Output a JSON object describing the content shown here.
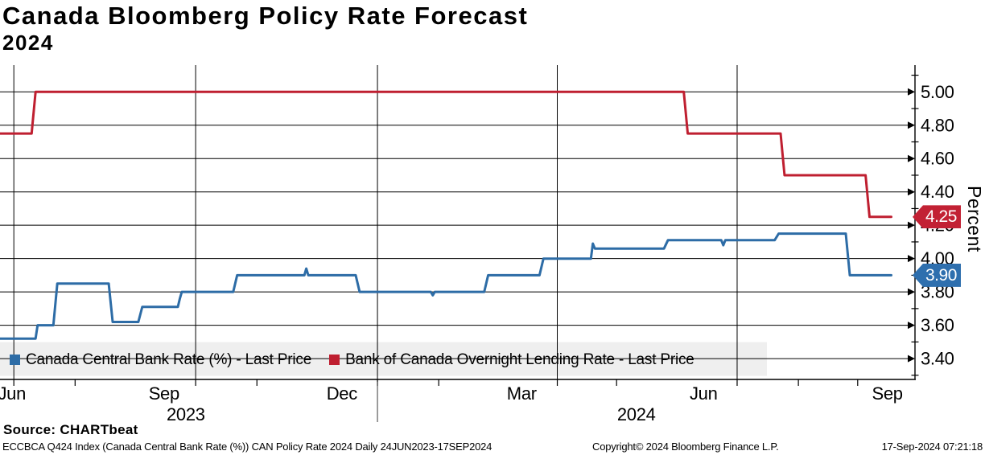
{
  "header": {
    "title": "Canada Bloomberg Policy Rate Forecast",
    "subtitle": "2024"
  },
  "legend": {
    "background": "#efefef",
    "items": [
      {
        "label": "Canada Central Bank Rate (%) - Last Price",
        "color": "#2d6ca6"
      },
      {
        "label": "Bank of Canada Overnight Lending Rate - Last Price",
        "color": "#bf1f30"
      }
    ]
  },
  "axis_y": {
    "title": "Percent",
    "badges": [
      {
        "value": "4.25",
        "color": "#c22134"
      },
      {
        "value": "3.90",
        "color": "#2e6fae"
      }
    ]
  },
  "footer": {
    "source": "Source: CHARTbeat",
    "left": "ECCBCA Q424 Index (Canada Central Bank Rate (%)) CAN Policy Rate 2024  Daily 24JUN2023-17SEP2024",
    "copyright": "Copyright© 2024 Bloomberg Finance L.P.",
    "timestamp": "17-Sep-2024 07:21:18"
  },
  "chart_data": {
    "type": "line",
    "title": "Canada Bloomberg Policy Rate Forecast 2024",
    "ylabel": "Percent",
    "grid": true,
    "legend_position": "bottom-inside",
    "x_range": {
      "start": "24JUN2023",
      "end": "17SEP2024",
      "days": [
        0,
        463
      ]
    },
    "ylim": [
      3.275,
      5.175
    ],
    "y_axis": {
      "majors": [
        {
          "value": 5.0,
          "label": "5.00"
        },
        {
          "value": 4.8,
          "label": "4.80"
        },
        {
          "value": 4.6,
          "label": "4.60"
        },
        {
          "value": 4.4,
          "label": "4.40"
        },
        {
          "value": 4.2,
          "label": "4.20"
        },
        {
          "value": 4.0,
          "label": "4.00"
        },
        {
          "value": 3.8,
          "label": "3.80"
        },
        {
          "value": 3.6,
          "label": "3.60"
        },
        {
          "value": 3.4,
          "label": "3.40"
        }
      ],
      "minors": [
        5.1,
        4.9,
        4.7,
        4.5,
        4.3,
        4.1,
        3.9,
        3.7,
        3.5,
        3.3
      ]
    },
    "x_axis": {
      "gridline_days": [
        7,
        99,
        191,
        282,
        373
      ],
      "tick_days": [
        7,
        38,
        99,
        130,
        191,
        222,
        282,
        312,
        373,
        404,
        434
      ],
      "labels": [
        {
          "day": 6,
          "text": "Jun"
        },
        {
          "day": 83,
          "text": "Sep"
        },
        {
          "day": 173,
          "text": "Dec"
        },
        {
          "day": 264,
          "text": "Mar"
        },
        {
          "day": 356,
          "text": "Jun"
        },
        {
          "day": 449,
          "text": "Sep"
        }
      ],
      "year_labels": [
        {
          "day": 94,
          "text": "2023"
        },
        {
          "day": 322,
          "text": "2024"
        }
      ],
      "year_separator_day": 191
    },
    "series": [
      {
        "id": "canada-central-bank-rate",
        "name": "Canada Central Bank Rate (%) - Last Price",
        "color": "#2d6ca6",
        "last_price": 3.9,
        "points": [
          [
            0,
            3.52
          ],
          [
            18,
            3.52
          ],
          [
            19,
            3.6
          ],
          [
            27,
            3.6
          ],
          [
            29,
            3.85
          ],
          [
            55,
            3.85
          ],
          [
            57,
            3.62
          ],
          [
            70,
            3.62
          ],
          [
            72,
            3.71
          ],
          [
            90,
            3.71
          ],
          [
            91,
            3.76
          ],
          [
            92,
            3.8
          ],
          [
            118,
            3.8
          ],
          [
            120,
            3.9
          ],
          [
            154,
            3.9
          ],
          [
            155,
            3.94
          ],
          [
            156,
            3.9
          ],
          [
            180,
            3.9
          ],
          [
            182,
            3.8
          ],
          [
            218,
            3.8
          ],
          [
            219,
            3.78
          ],
          [
            220,
            3.8
          ],
          [
            245,
            3.8
          ],
          [
            247,
            3.9
          ],
          [
            273,
            3.9
          ],
          [
            275,
            4.0
          ],
          [
            299,
            4.0
          ],
          [
            300,
            4.09
          ],
          [
            301,
            4.06
          ],
          [
            336,
            4.06
          ],
          [
            338,
            4.11
          ],
          [
            365,
            4.11
          ],
          [
            366,
            4.08
          ],
          [
            367,
            4.11
          ],
          [
            392,
            4.11
          ],
          [
            394,
            4.15
          ],
          [
            428,
            4.15
          ],
          [
            430,
            3.9
          ],
          [
            451,
            3.9
          ]
        ]
      },
      {
        "id": "boc-overnight-lending-rate",
        "name": "Bank of Canada Overnight Lending Rate - Last Price",
        "color": "#bf1f30",
        "last_price": 4.25,
        "points": [
          [
            0,
            4.75
          ],
          [
            16,
            4.75
          ],
          [
            18,
            5.0
          ],
          [
            346,
            5.0
          ],
          [
            348,
            4.75
          ],
          [
            395,
            4.75
          ],
          [
            397,
            4.5
          ],
          [
            438,
            4.5
          ],
          [
            440,
            4.25
          ],
          [
            451,
            4.25
          ]
        ]
      }
    ]
  }
}
